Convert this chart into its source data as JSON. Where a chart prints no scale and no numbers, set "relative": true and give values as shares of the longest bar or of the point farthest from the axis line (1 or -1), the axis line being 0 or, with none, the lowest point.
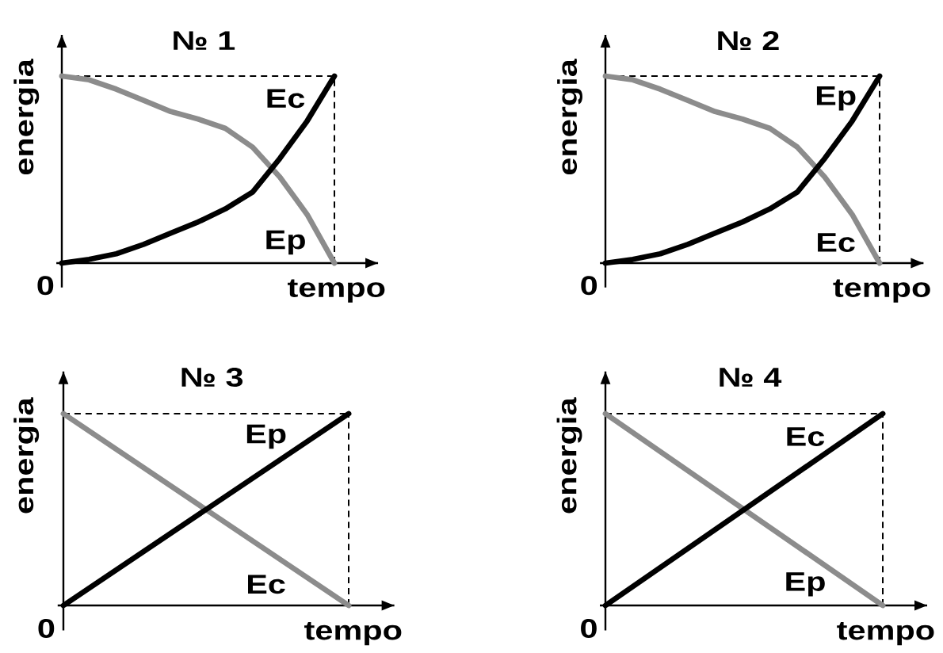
{
  "chart_data": [
    {
      "type": "line",
      "relative": true,
      "title": "№ 1",
      "xlabel": "tempo",
      "ylabel": "energia",
      "annotations": [
        "0"
      ],
      "categories": [
        null,
        null,
        null,
        null,
        null,
        null,
        null,
        null,
        null,
        null,
        null
      ],
      "series": [
        {
          "name": "Ep",
          "color": "#8c8c8c",
          "values": [
            1,
            0.98,
            0.93,
            0.87,
            0.81,
            0.77,
            0.72,
            0.62,
            0.46,
            0.26,
            0
          ]
        },
        {
          "name": "Ec",
          "color": "#000000",
          "values": [
            0,
            0.02,
            0.05,
            0.1,
            0.16,
            0.22,
            0.29,
            0.38,
            0.56,
            0.76,
            1
          ]
        }
      ],
      "ref_lines": [
        {
          "axis": "y",
          "value": 1,
          "line_style": "dashed",
          "color": "#000000"
        }
      ]
    },
    {
      "type": "line",
      "relative": true,
      "title": "№ 2",
      "xlabel": "tempo",
      "ylabel": "energia",
      "annotations": [
        "0"
      ],
      "categories": [
        null,
        null,
        null,
        null,
        null,
        null,
        null,
        null,
        null,
        null,
        null
      ],
      "series": [
        {
          "name": "Ec",
          "color": "#8c8c8c",
          "values": [
            1,
            0.98,
            0.93,
            0.87,
            0.81,
            0.77,
            0.72,
            0.62,
            0.46,
            0.26,
            0
          ]
        },
        {
          "name": "Ep",
          "color": "#000000",
          "values": [
            0,
            0.02,
            0.05,
            0.1,
            0.16,
            0.22,
            0.29,
            0.38,
            0.56,
            0.76,
            1
          ]
        }
      ],
      "ref_lines": [
        {
          "axis": "y",
          "value": 1,
          "line_style": "dashed",
          "color": "#000000"
        }
      ]
    },
    {
      "type": "line",
      "relative": true,
      "title": "№ 3",
      "xlabel": "tempo",
      "ylabel": "energia",
      "annotations": [
        "0"
      ],
      "categories": [
        null,
        null
      ],
      "series": [
        {
          "name": "Ec",
          "color": "#8c8c8c",
          "values": [
            1,
            0
          ]
        },
        {
          "name": "Ep",
          "color": "#000000",
          "values": [
            0,
            1
          ]
        }
      ],
      "ref_lines": [
        {
          "axis": "y",
          "value": 1,
          "line_style": "dashed",
          "color": "#000000"
        }
      ]
    },
    {
      "type": "line",
      "relative": true,
      "title": "№ 4",
      "xlabel": "tempo",
      "ylabel": "energia",
      "annotations": [
        "0"
      ],
      "categories": [
        null,
        null
      ],
      "series": [
        {
          "name": "Ep",
          "color": "#8c8c8c",
          "values": [
            1,
            0
          ]
        },
        {
          "name": "Ec",
          "color": "#000000",
          "values": [
            0,
            1
          ]
        }
      ],
      "ref_lines": [
        {
          "axis": "y",
          "value": 1,
          "line_style": "dashed",
          "color": "#000000"
        }
      ]
    }
  ]
}
